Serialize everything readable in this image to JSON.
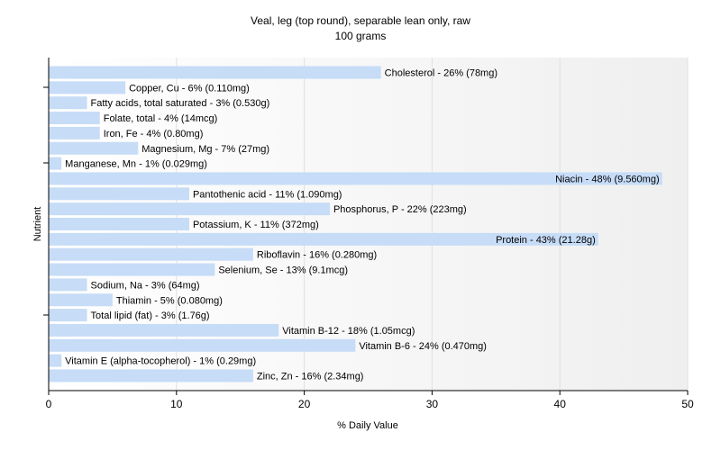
{
  "chart_data": {
    "type": "bar",
    "orientation": "horizontal",
    "title": "Veal, leg (top round), separable lean only, raw",
    "subtitle": "100 grams",
    "xlabel": "% Daily Value",
    "ylabel": "Nutrient",
    "xlim": [
      0,
      50
    ],
    "xticks": [
      "0",
      "10",
      "20",
      "30",
      "40",
      "50"
    ],
    "grid": true,
    "bar_color": "#c6dcf7",
    "categories": [
      "Cholesterol",
      "Copper, Cu",
      "Fatty acids, total saturated",
      "Folate, total",
      "Iron, Fe",
      "Magnesium, Mg",
      "Manganese, Mn",
      "Niacin",
      "Pantothenic acid",
      "Phosphorus, P",
      "Potassium, K",
      "Protein",
      "Riboflavin",
      "Selenium, Se",
      "Sodium, Na",
      "Thiamin",
      "Total lipid (fat)",
      "Vitamin B-12",
      "Vitamin B-6",
      "Vitamin E (alpha-tocopherol)",
      "Zinc, Zn"
    ],
    "values": [
      26,
      6,
      3,
      4,
      4,
      7,
      1,
      48,
      11,
      22,
      11,
      43,
      16,
      13,
      3,
      5,
      3,
      18,
      24,
      1,
      16
    ],
    "labels": [
      "Cholesterol - 26% (78mg)",
      "Copper, Cu - 6% (0.110mg)",
      "Fatty acids, total saturated - 3% (0.530g)",
      "Folate, total - 4% (14mcg)",
      "Iron, Fe - 4% (0.80mg)",
      "Magnesium, Mg - 7% (27mg)",
      "Manganese, Mn - 1% (0.029mg)",
      "Niacin - 48% (9.560mg)",
      "Pantothenic acid - 11% (1.090mg)",
      "Phosphorus, P - 22% (223mg)",
      "Potassium, K - 11% (372mg)",
      "Protein - 43% (21.28g)",
      "Riboflavin - 16% (0.280mg)",
      "Selenium, Se - 13% (9.1mcg)",
      "Sodium, Na - 3% (64mg)",
      "Thiamin - 5% (0.080mg)",
      "Total lipid (fat) - 3% (1.76g)",
      "Vitamin B-12 - 18% (1.05mcg)",
      "Vitamin B-6 - 24% (0.470mg)",
      "Vitamin E (alpha-tocopherol) - 1% (0.29mg)",
      "Zinc, Zn - 16% (2.34mg)"
    ]
  }
}
